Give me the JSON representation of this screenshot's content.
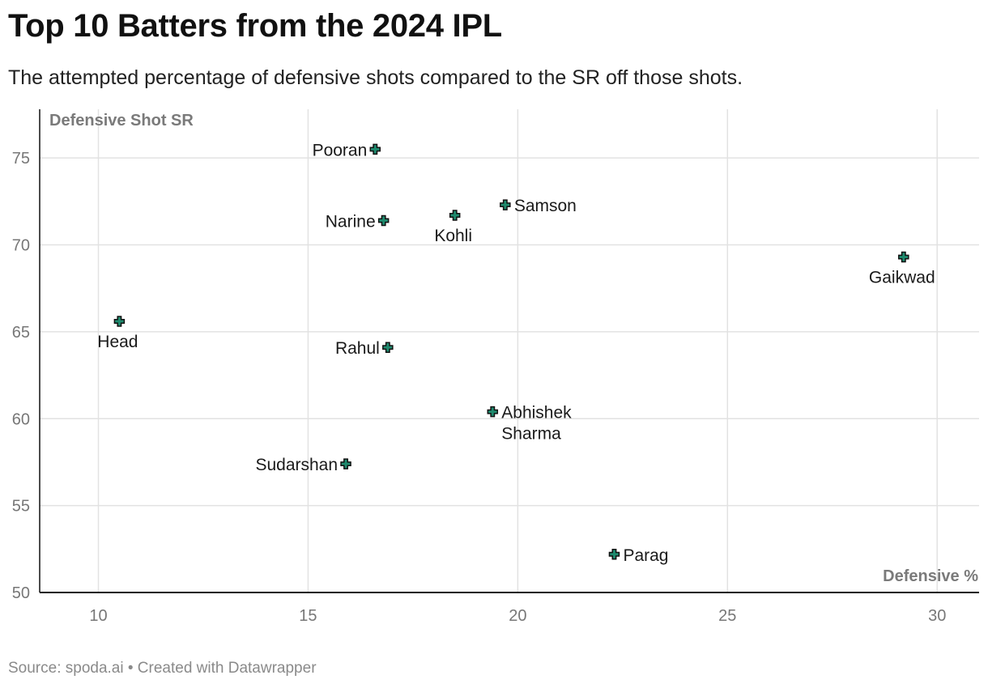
{
  "header": {
    "title": "Top 10 Batters from the 2024 IPL",
    "subtitle": "The attempted percentage of defensive shots compared to the SR off those shots."
  },
  "footer": {
    "source": "Source: spoda.ai • Created with Datawrapper"
  },
  "colors": {
    "marker_fill": "#1f8a6e",
    "marker_stroke": "#111111",
    "grid": "#e2e2e2",
    "axis": "#111111"
  },
  "chart_data": {
    "type": "scatter",
    "xlabel": "Defensive %",
    "ylabel": "Defensive Shot SR",
    "xlim": [
      8.6,
      31.0
    ],
    "ylim": [
      50,
      77.8
    ],
    "xticks": [
      10,
      15,
      20,
      25,
      30
    ],
    "yticks": [
      50,
      55,
      60,
      65,
      70,
      75
    ],
    "grid": true,
    "points": [
      {
        "name": "Pooran",
        "x": 16.6,
        "y": 75.5,
        "label_pos": "left"
      },
      {
        "name": "Narine",
        "x": 16.8,
        "y": 71.4,
        "label_pos": "left"
      },
      {
        "name": "Kohli",
        "x": 18.5,
        "y": 71.7,
        "label_pos": "below"
      },
      {
        "name": "Samson",
        "x": 19.7,
        "y": 72.3,
        "label_pos": "right"
      },
      {
        "name": "Gaikwad",
        "x": 29.2,
        "y": 69.3,
        "label_pos": "below"
      },
      {
        "name": "Head",
        "x": 10.5,
        "y": 65.6,
        "label_pos": "below"
      },
      {
        "name": "Rahul",
        "x": 16.9,
        "y": 64.1,
        "label_pos": "left"
      },
      {
        "name": "Abhishek Sharma",
        "x": 19.4,
        "y": 60.4,
        "label_pos": "right",
        "label_lines": [
          "Abhishek",
          "Sharma"
        ]
      },
      {
        "name": "Sudarshan",
        "x": 15.9,
        "y": 57.4,
        "label_pos": "left"
      },
      {
        "name": "Parag",
        "x": 22.3,
        "y": 52.2,
        "label_pos": "right"
      }
    ]
  }
}
